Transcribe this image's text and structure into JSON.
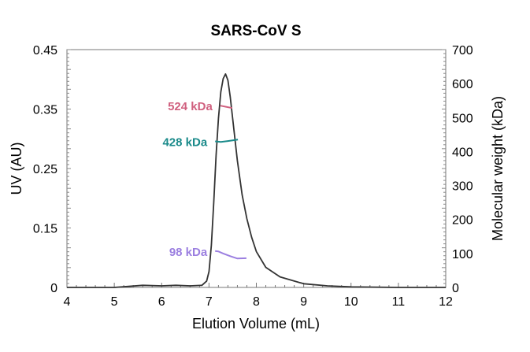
{
  "chart_data": {
    "type": "line",
    "title": "SARS-CoV S",
    "xlabel": "Elution Volume (mL)",
    "ylabel": "UV (AU)",
    "y2label": "Molecular weight (kDa)",
    "xlim": [
      4,
      12
    ],
    "ylim": [
      0,
      0.45
    ],
    "y2lim": [
      0,
      700
    ],
    "xticks": [
      "4",
      "5",
      "6",
      "7",
      "8",
      "9",
      "10",
      "11",
      "12"
    ],
    "yticks": [
      "0",
      "0.15",
      "0.25",
      "0.35",
      "0.45"
    ],
    "y2ticks": [
      "0",
      "100",
      "200",
      "300",
      "400",
      "500",
      "600",
      "700"
    ],
    "grid": false,
    "uv_trace": {
      "color": "#333333",
      "x": [
        4.0,
        5.0,
        5.3,
        5.6,
        6.0,
        6.3,
        6.6,
        6.85,
        6.95,
        7.0,
        7.05,
        7.1,
        7.15,
        7.2,
        7.25,
        7.3,
        7.35,
        7.4,
        7.45,
        7.5,
        7.6,
        7.7,
        7.8,
        7.9,
        8.0,
        8.2,
        8.5,
        9.0,
        9.5,
        10.0,
        11.0,
        12.0
      ],
      "y": [
        0.0,
        0.0,
        0.002,
        0.004,
        0.003,
        0.004,
        0.003,
        0.004,
        0.012,
        0.03,
        0.08,
        0.16,
        0.25,
        0.32,
        0.37,
        0.395,
        0.404,
        0.392,
        0.36,
        0.32,
        0.24,
        0.175,
        0.13,
        0.095,
        0.068,
        0.038,
        0.02,
        0.007,
        0.003,
        0.001,
        0.0,
        0.0
      ]
    },
    "mw_series": [
      {
        "label": "524 kDa",
        "color": "#d0607f",
        "x": [
          7.24,
          7.35,
          7.49
        ],
        "y": [
          535,
          532,
          528
        ]
      },
      {
        "label": "428 kDa",
        "color": "#1a8a8a",
        "x": [
          7.13,
          7.25,
          7.4,
          7.5,
          7.61
        ],
        "y": [
          430,
          428,
          431,
          433,
          435
        ]
      },
      {
        "label": "98 kDa",
        "color": "#9b7fe0",
        "x": [
          7.13,
          7.2,
          7.3,
          7.45,
          7.6,
          7.79
        ],
        "y": [
          107,
          106,
          100,
          92,
          85,
          86
        ]
      }
    ]
  }
}
